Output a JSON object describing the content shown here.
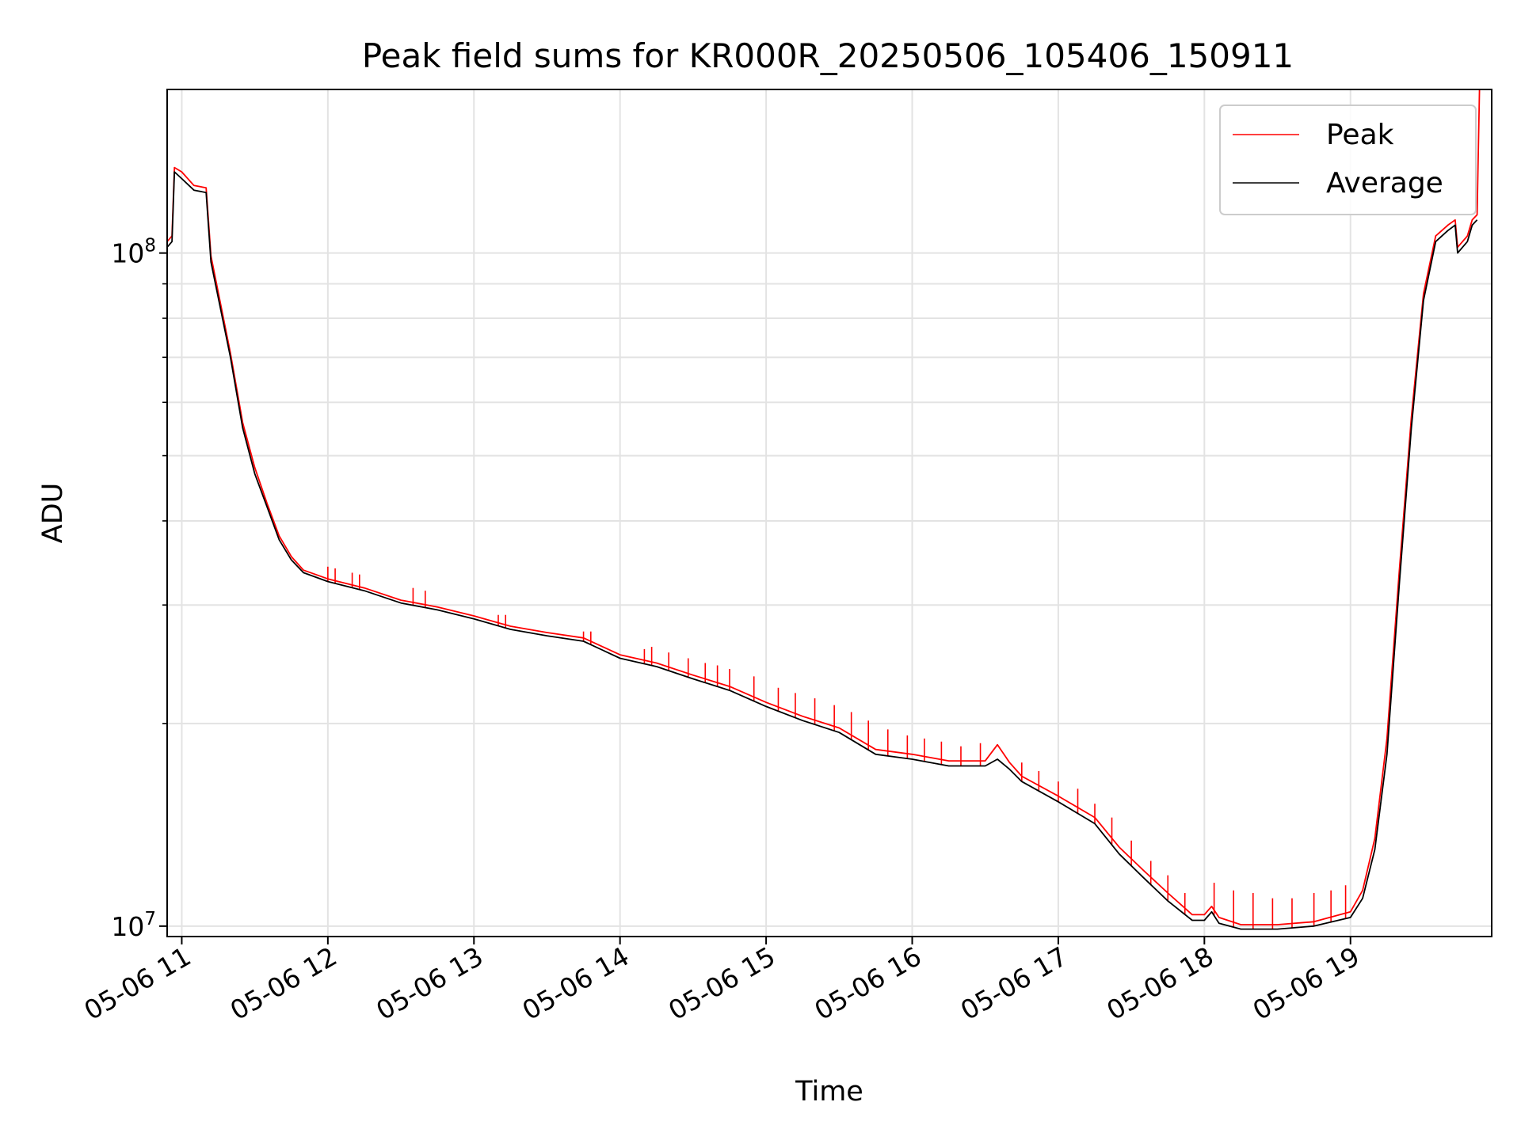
{
  "chart_data": {
    "type": "line",
    "title": "Peak field sums for KR000R_20250506_105406_150911",
    "xlabel": "Time",
    "ylabel": "ADU",
    "y_scale": "log",
    "ylim": [
      9650000,
      175000000
    ],
    "xlim": [
      "2025-05-06 10:54",
      "2025-05-06 19:58"
    ],
    "x_ticks": [
      "05-06 11",
      "05-06 12",
      "05-06 13",
      "05-06 14",
      "05-06 15",
      "05-06 16",
      "05-06 17",
      "05-06 18",
      "05-06 19"
    ],
    "y_ticks": [
      {
        "label_base": "10",
        "label_exp": "7",
        "value": 10000000
      },
      {
        "label_base": "10",
        "label_exp": "8",
        "value": 100000000
      }
    ],
    "grid": true,
    "legend_position": "top-right",
    "series": [
      {
        "name": "Average",
        "color": "#000000",
        "points": [
          [
            "2025-05-06 10:54",
            102000000
          ],
          [
            "2025-05-06 10:56",
            104000000
          ],
          [
            "2025-05-06 10:57",
            132000000
          ],
          [
            "2025-05-06 11:00",
            129000000
          ],
          [
            "2025-05-06 11:05",
            124000000
          ],
          [
            "2025-05-06 11:10",
            123000000
          ],
          [
            "2025-05-06 11:12",
            97000000
          ],
          [
            "2025-05-06 11:20",
            70000000
          ],
          [
            "2025-05-06 11:25",
            55000000
          ],
          [
            "2025-05-06 11:30",
            47000000
          ],
          [
            "2025-05-06 11:35",
            42000000
          ],
          [
            "2025-05-06 11:40",
            37500000
          ],
          [
            "2025-05-06 11:45",
            35000000
          ],
          [
            "2025-05-06 11:50",
            33500000
          ],
          [
            "2025-05-06 12:00",
            32500000
          ],
          [
            "2025-05-06 12:15",
            31500000
          ],
          [
            "2025-05-06 12:30",
            30200000
          ],
          [
            "2025-05-06 12:45",
            29500000
          ],
          [
            "2025-05-06 13:00",
            28600000
          ],
          [
            "2025-05-06 13:15",
            27600000
          ],
          [
            "2025-05-06 13:30",
            27000000
          ],
          [
            "2025-05-06 13:45",
            26500000
          ],
          [
            "2025-05-06 14:00",
            25000000
          ],
          [
            "2025-05-06 14:15",
            24300000
          ],
          [
            "2025-05-06 14:30",
            23300000
          ],
          [
            "2025-05-06 14:45",
            22400000
          ],
          [
            "2025-05-06 15:00",
            21200000
          ],
          [
            "2025-05-06 15:15",
            20200000
          ],
          [
            "2025-05-06 15:30",
            19400000
          ],
          [
            "2025-05-06 15:45",
            18000000
          ],
          [
            "2025-05-06 16:00",
            17700000
          ],
          [
            "2025-05-06 16:15",
            17300000
          ],
          [
            "2025-05-06 16:30",
            17300000
          ],
          [
            "2025-05-06 16:35",
            17700000
          ],
          [
            "2025-05-06 16:40",
            17100000
          ],
          [
            "2025-05-06 16:45",
            16400000
          ],
          [
            "2025-05-06 17:00",
            15300000
          ],
          [
            "2025-05-06 17:15",
            14200000
          ],
          [
            "2025-05-06 17:25",
            12800000
          ],
          [
            "2025-05-06 17:35",
            11800000
          ],
          [
            "2025-05-06 17:45",
            10900000
          ],
          [
            "2025-05-06 17:55",
            10200000
          ],
          [
            "2025-05-06 18:00",
            10200000
          ],
          [
            "2025-05-06 18:03",
            10500000
          ],
          [
            "2025-05-06 18:06",
            10100000
          ],
          [
            "2025-05-06 18:15",
            9900000
          ],
          [
            "2025-05-06 18:30",
            9900000
          ],
          [
            "2025-05-06 18:45",
            10000000
          ],
          [
            "2025-05-06 19:00",
            10300000
          ],
          [
            "2025-05-06 19:05",
            11000000
          ],
          [
            "2025-05-06 19:10",
            13000000
          ],
          [
            "2025-05-06 19:15",
            18000000
          ],
          [
            "2025-05-06 19:20",
            32000000
          ],
          [
            "2025-05-06 19:25",
            55000000
          ],
          [
            "2025-05-06 19:30",
            85000000
          ],
          [
            "2025-05-06 19:35",
            104000000
          ],
          [
            "2025-05-06 19:40",
            108000000
          ],
          [
            "2025-05-06 19:43",
            110000000
          ],
          [
            "2025-05-06 19:44",
            100000000
          ],
          [
            "2025-05-06 19:48",
            104000000
          ],
          [
            "2025-05-06 19:50",
            110000000
          ],
          [
            "2025-05-06 19:52",
            112000000
          ]
        ]
      },
      {
        "name": "Peak",
        "color": "#ff0000",
        "points": [
          [
            "2025-05-06 10:54",
            104000000
          ],
          [
            "2025-05-06 10:56",
            106000000
          ],
          [
            "2025-05-06 10:57",
            134000000
          ],
          [
            "2025-05-06 11:00",
            132000000
          ],
          [
            "2025-05-06 11:05",
            126000000
          ],
          [
            "2025-05-06 11:10",
            125000000
          ],
          [
            "2025-05-06 11:12",
            99000000
          ],
          [
            "2025-05-06 11:20",
            71000000
          ],
          [
            "2025-05-06 11:25",
            56000000
          ],
          [
            "2025-05-06 11:30",
            48000000
          ],
          [
            "2025-05-06 11:35",
            42500000
          ],
          [
            "2025-05-06 11:40",
            38000000
          ],
          [
            "2025-05-06 11:45",
            35400000
          ],
          [
            "2025-05-06 11:50",
            33800000
          ],
          [
            "2025-05-06 12:00",
            32800000
          ],
          [
            "2025-05-06 12:15",
            31800000
          ],
          [
            "2025-05-06 12:30",
            30500000
          ],
          [
            "2025-05-06 12:45",
            29800000
          ],
          [
            "2025-05-06 13:00",
            28900000
          ],
          [
            "2025-05-06 13:15",
            27900000
          ],
          [
            "2025-05-06 13:30",
            27300000
          ],
          [
            "2025-05-06 13:45",
            26800000
          ],
          [
            "2025-05-06 14:00",
            25300000
          ],
          [
            "2025-05-06 14:15",
            24600000
          ],
          [
            "2025-05-06 14:30",
            23600000
          ],
          [
            "2025-05-06 14:45",
            22700000
          ],
          [
            "2025-05-06 15:00",
            21500000
          ],
          [
            "2025-05-06 15:15",
            20500000
          ],
          [
            "2025-05-06 15:30",
            19700000
          ],
          [
            "2025-05-06 15:45",
            18300000
          ],
          [
            "2025-05-06 16:00",
            18000000
          ],
          [
            "2025-05-06 16:15",
            17600000
          ],
          [
            "2025-05-06 16:30",
            17600000
          ],
          [
            "2025-05-06 16:35",
            18600000
          ],
          [
            "2025-05-06 16:40",
            17500000
          ],
          [
            "2025-05-06 16:45",
            16700000
          ],
          [
            "2025-05-06 17:00",
            15600000
          ],
          [
            "2025-05-06 17:15",
            14500000
          ],
          [
            "2025-05-06 17:25",
            13100000
          ],
          [
            "2025-05-06 17:35",
            12100000
          ],
          [
            "2025-05-06 17:45",
            11200000
          ],
          [
            "2025-05-06 17:55",
            10400000
          ],
          [
            "2025-05-06 18:00",
            10400000
          ],
          [
            "2025-05-06 18:03",
            10700000
          ],
          [
            "2025-05-06 18:06",
            10300000
          ],
          [
            "2025-05-06 18:15",
            10050000
          ],
          [
            "2025-05-06 18:30",
            10050000
          ],
          [
            "2025-05-06 18:45",
            10150000
          ],
          [
            "2025-05-06 19:00",
            10500000
          ],
          [
            "2025-05-06 19:05",
            11300000
          ],
          [
            "2025-05-06 19:10",
            13500000
          ],
          [
            "2025-05-06 19:15",
            19000000
          ],
          [
            "2025-05-06 19:20",
            33500000
          ],
          [
            "2025-05-06 19:25",
            57000000
          ],
          [
            "2025-05-06 19:30",
            87000000
          ],
          [
            "2025-05-06 19:35",
            106000000
          ],
          [
            "2025-05-06 19:40",
            110000000
          ],
          [
            "2025-05-06 19:43",
            112000000
          ],
          [
            "2025-05-06 19:44",
            102000000
          ],
          [
            "2025-05-06 19:48",
            106000000
          ],
          [
            "2025-05-06 19:50",
            112000000
          ],
          [
            "2025-05-06 19:52",
            114000000
          ],
          [
            "2025-05-06 19:53",
            175000000
          ]
        ],
        "spikes": [
          [
            "2025-05-06 12:00",
            34200000
          ],
          [
            "2025-05-06 12:03",
            34000000
          ],
          [
            "2025-05-06 12:10",
            33500000
          ],
          [
            "2025-05-06 12:13",
            33300000
          ],
          [
            "2025-05-06 12:35",
            31800000
          ],
          [
            "2025-05-06 12:40",
            31500000
          ],
          [
            "2025-05-06 13:10",
            29000000
          ],
          [
            "2025-05-06 13:13",
            29000000
          ],
          [
            "2025-05-06 13:45",
            27400000
          ],
          [
            "2025-05-06 13:48",
            27400000
          ],
          [
            "2025-05-06 14:10",
            25800000
          ],
          [
            "2025-05-06 14:13",
            26000000
          ],
          [
            "2025-05-06 14:20",
            25500000
          ],
          [
            "2025-05-06 14:28",
            25000000
          ],
          [
            "2025-05-06 14:35",
            24600000
          ],
          [
            "2025-05-06 14:40",
            24400000
          ],
          [
            "2025-05-06 14:45",
            24100000
          ],
          [
            "2025-05-06 14:55",
            23500000
          ],
          [
            "2025-05-06 15:05",
            22600000
          ],
          [
            "2025-05-06 15:12",
            22200000
          ],
          [
            "2025-05-06 15:20",
            21800000
          ],
          [
            "2025-05-06 15:28",
            21300000
          ],
          [
            "2025-05-06 15:35",
            20800000
          ],
          [
            "2025-05-06 15:42",
            20200000
          ],
          [
            "2025-05-06 15:50",
            19600000
          ],
          [
            "2025-05-06 15:58",
            19200000
          ],
          [
            "2025-05-06 16:05",
            19000000
          ],
          [
            "2025-05-06 16:12",
            18800000
          ],
          [
            "2025-05-06 16:20",
            18500000
          ],
          [
            "2025-05-06 16:28",
            18700000
          ],
          [
            "2025-05-06 16:45",
            17500000
          ],
          [
            "2025-05-06 16:52",
            17000000
          ],
          [
            "2025-05-06 17:00",
            16400000
          ],
          [
            "2025-05-06 17:08",
            16000000
          ],
          [
            "2025-05-06 17:15",
            15200000
          ],
          [
            "2025-05-06 17:22",
            14500000
          ],
          [
            "2025-05-06 17:30",
            13400000
          ],
          [
            "2025-05-06 17:38",
            12500000
          ],
          [
            "2025-05-06 17:45",
            11900000
          ],
          [
            "2025-05-06 17:52",
            11200000
          ],
          [
            "2025-05-06 18:04",
            11600000
          ],
          [
            "2025-05-06 18:12",
            11300000
          ],
          [
            "2025-05-06 18:20",
            11200000
          ],
          [
            "2025-05-06 18:28",
            11000000
          ],
          [
            "2025-05-06 18:36",
            11000000
          ],
          [
            "2025-05-06 18:45",
            11200000
          ],
          [
            "2025-05-06 18:52",
            11300000
          ],
          [
            "2025-05-06 18:58",
            11500000
          ]
        ]
      }
    ]
  }
}
